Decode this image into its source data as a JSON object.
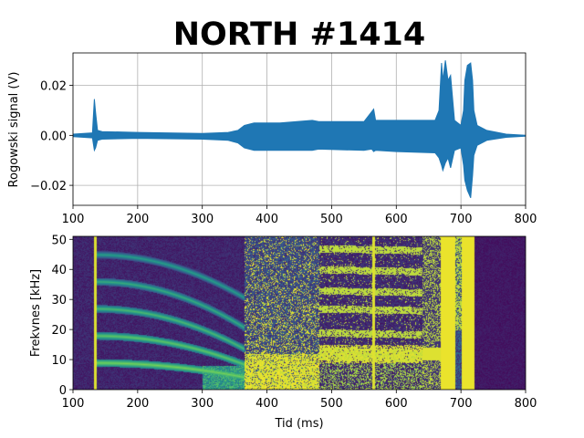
{
  "title": "NORTH #1414",
  "colors": {
    "signal": "#1f77b4",
    "spec_low": "#440154",
    "spec_high": "#fde725",
    "grid": "#b0b0b0"
  },
  "chart_data": [
    {
      "type": "line",
      "name": "rogowski",
      "xlabel": "",
      "ylabel": "Rogowski signal (V)",
      "xlim": [
        100,
        800
      ],
      "ylim": [
        -0.028,
        0.033
      ],
      "xticks": [
        100,
        200,
        300,
        400,
        500,
        600,
        700,
        800
      ],
      "yticks": [
        -0.02,
        0.0,
        0.02
      ],
      "ytick_labels": [
        "−0.02",
        "0.00",
        "0.02"
      ],
      "grid": true,
      "envelope": {
        "x": [
          100,
          130,
          133,
          135,
          138,
          145,
          200,
          300,
          340,
          355,
          365,
          380,
          420,
          470,
          480,
          550,
          562,
          565,
          568,
          600,
          660,
          666,
          670,
          672,
          676,
          680,
          684,
          690,
          700,
          704,
          706,
          710,
          715,
          718,
          720,
          725,
          740,
          770,
          800
        ],
        "ymax": [
          0.0005,
          0.001,
          0.0145,
          0.009,
          0.002,
          0.0015,
          0.0012,
          0.0008,
          0.0012,
          0.002,
          0.004,
          0.005,
          0.005,
          0.006,
          0.0055,
          0.0055,
          0.0095,
          0.0105,
          0.006,
          0.006,
          0.006,
          0.01,
          0.029,
          0.022,
          0.03,
          0.022,
          0.024,
          0.006,
          0.004,
          0.01,
          0.022,
          0.028,
          0.029,
          0.022,
          0.01,
          0.004,
          0.002,
          0.0005,
          0.0
        ],
        "ymin": [
          -0.0005,
          -0.001,
          -0.006,
          -0.005,
          -0.002,
          -0.0015,
          -0.0012,
          -0.0015,
          -0.002,
          -0.003,
          -0.005,
          -0.006,
          -0.006,
          -0.006,
          -0.0055,
          -0.006,
          -0.0055,
          -0.0065,
          -0.006,
          -0.0065,
          -0.007,
          -0.009,
          -0.012,
          -0.014,
          -0.011,
          -0.009,
          -0.013,
          -0.006,
          -0.005,
          -0.012,
          -0.018,
          -0.022,
          -0.025,
          -0.016,
          -0.008,
          -0.004,
          -0.002,
          -0.0008,
          -0.0003
        ]
      }
    },
    {
      "type": "heatmap",
      "name": "spectrogram",
      "xlabel": "Tid (ms)",
      "ylabel": "Frekvnes [kHz]",
      "xlim": [
        100,
        800
      ],
      "ylim": [
        0,
        51
      ],
      "xticks": [
        100,
        200,
        300,
        400,
        500,
        600,
        700,
        800
      ],
      "yticks": [
        0,
        10,
        20,
        30,
        40,
        50
      ],
      "grid": false,
      "mode_lines_khz_at_start": [
        9,
        18,
        27,
        36,
        45
      ],
      "mode_lines_khz_at_end": [
        4,
        8,
        13,
        20,
        30
      ],
      "broadband_regions_ms": [
        [
          365,
          480
        ],
        [
          480,
          640
        ],
        [
          668,
          720
        ]
      ]
    }
  ]
}
